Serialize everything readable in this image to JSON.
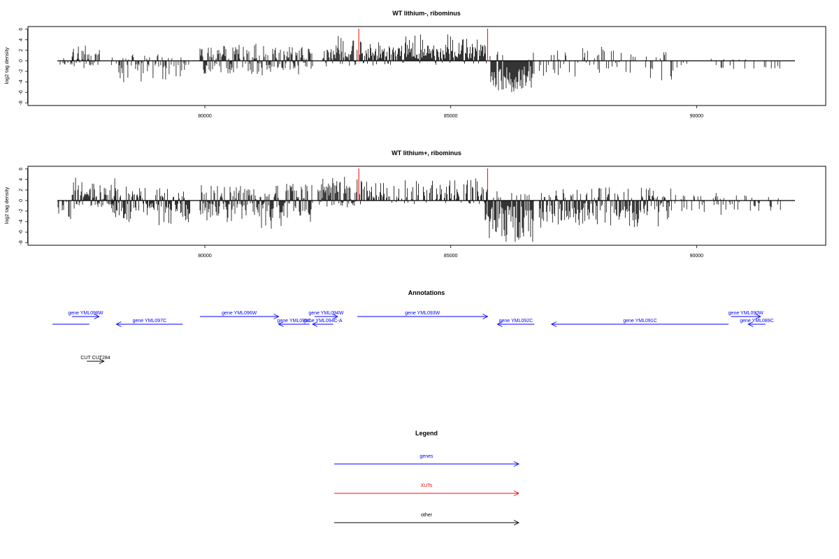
{
  "chart_data": [
    {
      "type": "bar",
      "title": "WT lithium-, ribominus",
      "ylabel": "log2 tag density",
      "xlim": [
        77000,
        92500
      ],
      "ylim": [
        -8.5,
        6.5
      ],
      "y_ticks": [
        -8,
        -6,
        -4,
        -2,
        0,
        2,
        4,
        6
      ],
      "x_ticks": [
        80000,
        85000,
        90000
      ],
      "markers": [
        {
          "x": 83130,
          "color": "#ff0000"
        },
        {
          "x": 85750,
          "color": "#ff0000"
        }
      ],
      "profile": [
        {
          "from": 77000,
          "to": 77450,
          "min": -1,
          "max": 0.5,
          "density": 0.3,
          "seed": 1
        },
        {
          "from": 77300,
          "to": 77900,
          "min": -2,
          "max": 3.5,
          "density": 0.6,
          "seed": 2
        },
        {
          "from": 77900,
          "to": 78200,
          "min": -1,
          "max": 1,
          "density": 0.2,
          "seed": 3
        },
        {
          "from": 78250,
          "to": 79700,
          "min": -4.5,
          "max": 1.5,
          "density": 0.5,
          "seed": 4
        },
        {
          "from": 79900,
          "to": 82200,
          "min": -3,
          "max": 3.8,
          "density": 0.9,
          "seed": 5
        },
        {
          "from": 82400,
          "to": 83100,
          "min": -1.5,
          "max": 5.2,
          "density": 0.9,
          "seed": 6
        },
        {
          "from": 83150,
          "to": 85750,
          "min": -1,
          "max": 5.5,
          "density": 0.95,
          "seed": 7
        },
        {
          "from": 85800,
          "to": 86700,
          "min": -6,
          "max": 2,
          "density": 1.0,
          "neg": true,
          "seed": 8
        },
        {
          "from": 86800,
          "to": 89600,
          "min": -4.5,
          "max": 3,
          "density": 0.35,
          "seed": 9
        },
        {
          "from": 89600,
          "to": 91800,
          "min": -2.5,
          "max": 0.5,
          "density": 0.12,
          "seed": 10
        }
      ]
    },
    {
      "type": "bar",
      "title": "WT lithium+, ribominus",
      "ylabel": "log2 tag density",
      "xlim": [
        77000,
        92500
      ],
      "ylim": [
        -8.5,
        6.5
      ],
      "y_ticks": [
        -8,
        -6,
        -4,
        -2,
        0,
        2,
        4,
        6
      ],
      "x_ticks": [
        80000,
        85000,
        90000
      ],
      "markers": [
        {
          "x": 83130,
          "color": "#ff0000"
        },
        {
          "x": 85750,
          "color": "#ff0000"
        }
      ],
      "profile": [
        {
          "from": 77000,
          "to": 77300,
          "min": -5,
          "max": 0,
          "density": 0.4,
          "seed": 11
        },
        {
          "from": 77300,
          "to": 78200,
          "min": -2,
          "max": 5.5,
          "density": 1.0,
          "seed": 12
        },
        {
          "from": 78100,
          "to": 79700,
          "min": -5.5,
          "max": 3,
          "density": 0.9,
          "seed": 13
        },
        {
          "from": 79900,
          "to": 82200,
          "min": -5.5,
          "max": 4,
          "density": 1.0,
          "seed": 14
        },
        {
          "from": 82300,
          "to": 83100,
          "min": -1.5,
          "max": 5.2,
          "density": 1.0,
          "seed": 15
        },
        {
          "from": 83150,
          "to": 85750,
          "min": -1,
          "max": 4.5,
          "density": 0.6,
          "seed": 16
        },
        {
          "from": 85700,
          "to": 86700,
          "min": -8,
          "max": 2,
          "density": 1.0,
          "neg": true,
          "seed": 17
        },
        {
          "from": 86800,
          "to": 89500,
          "min": -5.5,
          "max": 3,
          "density": 0.9,
          "seed": 18
        },
        {
          "from": 89500,
          "to": 91800,
          "min": -3,
          "max": 1.5,
          "density": 0.3,
          "seed": 19
        }
      ]
    }
  ],
  "annotations": {
    "title": "Annotations",
    "features": [
      {
        "label": "",
        "from": 76900,
        "to": 77650,
        "row": 1,
        "dir": "none",
        "color": "#0000ff"
      },
      {
        "label": "gene YML098W",
        "from": 77300,
        "to": 77850,
        "row": 0,
        "dir": "right",
        "color": "#0000ff"
      },
      {
        "label": "gene YML097C",
        "from": 78200,
        "to": 79550,
        "row": 1,
        "dir": "left",
        "color": "#0000ff"
      },
      {
        "label": "gene YML096W",
        "from": 79900,
        "to": 81500,
        "row": 0,
        "dir": "right",
        "color": "#0000ff"
      },
      {
        "label": "gene YML095C",
        "from": 81500,
        "to": 82130,
        "row": 1,
        "dir": "left",
        "color": "#0000ff"
      },
      {
        "label": "gene YML094W",
        "from": 82230,
        "to": 82700,
        "row": 0,
        "dir": "right",
        "color": "#0000ff"
      },
      {
        "label": "gene YML094C-A",
        "from": 82190,
        "to": 82610,
        "row": 1,
        "dir": "left",
        "color": "#0000ff"
      },
      {
        "label": "gene YML093W",
        "from": 83100,
        "to": 85750,
        "row": 0,
        "dir": "right",
        "color": "#0000ff"
      },
      {
        "label": "gene YML092C",
        "from": 85950,
        "to": 86700,
        "row": 1,
        "dir": "left",
        "color": "#0000ff"
      },
      {
        "label": "gene YML091C",
        "from": 87050,
        "to": 90650,
        "row": 1,
        "dir": "left",
        "color": "#0000ff"
      },
      {
        "label": "gene YML090W",
        "from": 90700,
        "to": 91300,
        "row": 0,
        "dir": "right",
        "color": "#0000ff"
      },
      {
        "label": "gene YML089C",
        "from": 91050,
        "to": 91400,
        "row": 1,
        "dir": "left",
        "color": "#0000ff"
      },
      {
        "label": "CUT CUT284",
        "from": 77600,
        "to": 77950,
        "row": 2,
        "dir": "right",
        "color": "#000000"
      }
    ]
  },
  "legend": {
    "title": "Legend",
    "items": [
      {
        "label": "genes",
        "color": "#0000ff"
      },
      {
        "label": "XUTs",
        "color": "#ff0000"
      },
      {
        "label": "other",
        "color": "#000000"
      }
    ]
  }
}
